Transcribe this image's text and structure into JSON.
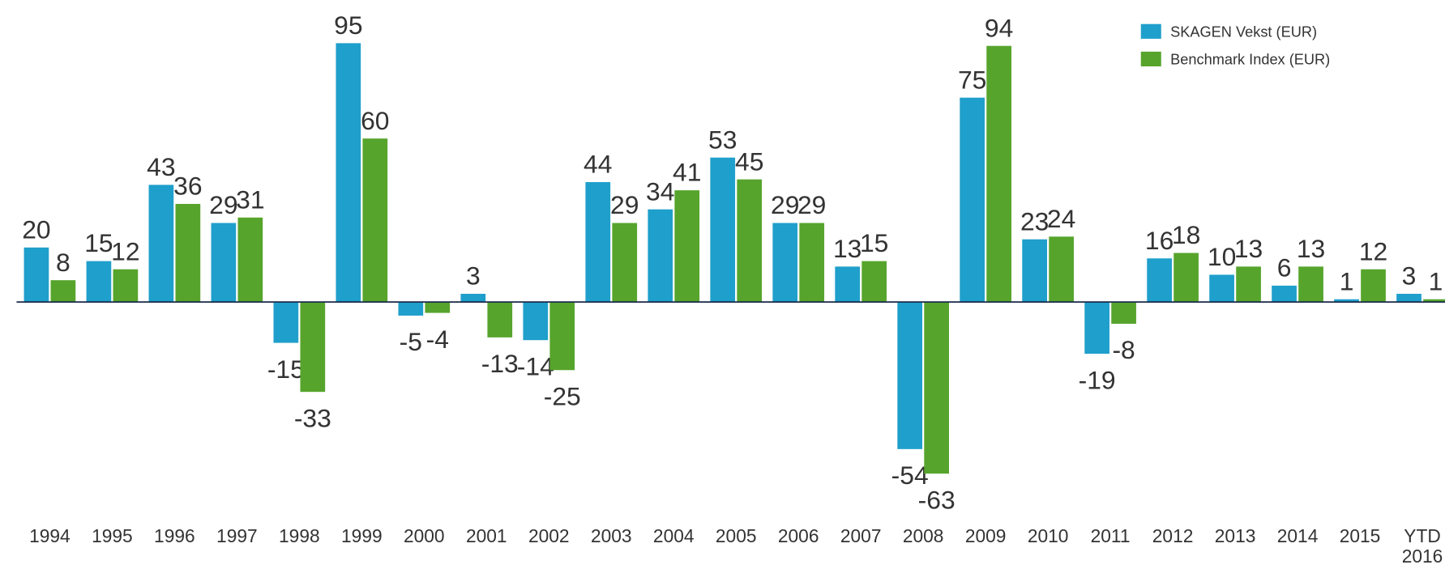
{
  "chart_data": {
    "type": "bar",
    "categories": [
      "1994",
      "1995",
      "1996",
      "1997",
      "1998",
      "1999",
      "2000",
      "2001",
      "2002",
      "2003",
      "2004",
      "2005",
      "2006",
      "2007",
      "2008",
      "2009",
      "2010",
      "2011",
      "2012",
      "2013",
      "2014",
      "2015",
      "YTD 2016"
    ],
    "series": [
      {
        "name": "SKAGEN Vekst (EUR)",
        "color": "#1f9fcb",
        "values": [
          20,
          15,
          43,
          29,
          -15,
          95,
          -5,
          3,
          -14,
          44,
          34,
          53,
          29,
          13,
          -54,
          75,
          23,
          -19,
          16,
          10,
          6,
          1,
          3
        ]
      },
      {
        "name": "Benchmark Index (EUR)",
        "color": "#56a42c",
        "values": [
          8,
          12,
          36,
          31,
          -33,
          60,
          -4,
          -13,
          -25,
          29,
          41,
          45,
          29,
          15,
          -63,
          94,
          24,
          -8,
          18,
          13,
          13,
          12,
          1
        ]
      }
    ],
    "legend": "top-right"
  }
}
